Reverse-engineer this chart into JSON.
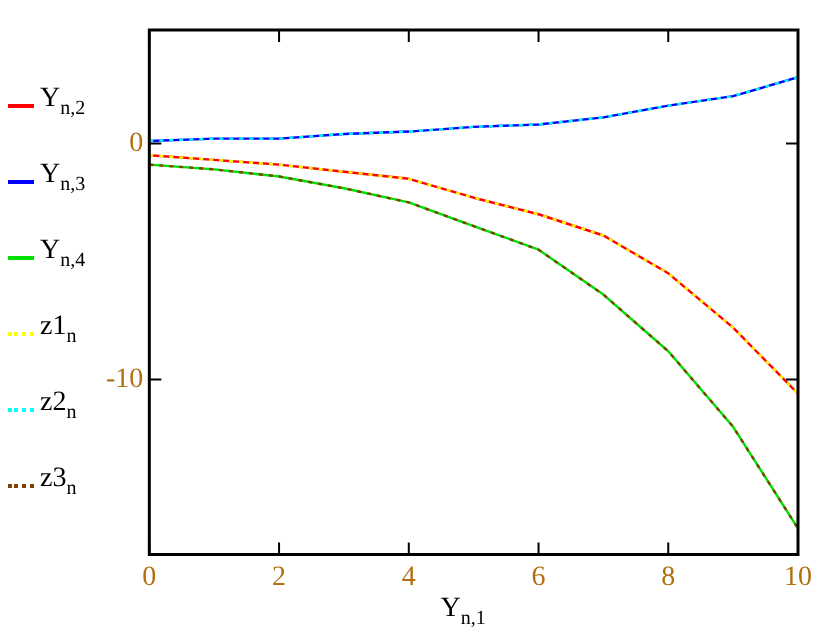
{
  "chart_data": {
    "type": "line",
    "xlabel": "Y$_{n,1}$",
    "x": [
      0,
      1,
      2,
      3,
      4,
      5,
      6,
      7,
      8,
      9,
      10
    ],
    "xlim": [
      0,
      10
    ],
    "xticks": [
      0,
      2,
      4,
      6,
      8,
      10
    ],
    "ylim": [
      -17.4,
      4.8
    ],
    "yticks": [
      0,
      -10
    ],
    "grid": false,
    "legend": "left",
    "marker": "none",
    "series": [
      {
        "name": "Y$_{n,2}$",
        "color": "#ff0000",
        "line_style": "solid",
        "values": [
          -0.5,
          -0.7,
          -0.9,
          -1.2,
          -1.5,
          -2.3,
          -3.0,
          -3.9,
          -5.5,
          -7.8,
          -10.6
        ]
      },
      {
        "name": "Y$_{n,3}$",
        "color": "#0000ff",
        "line_style": "solid",
        "values": [
          0.1,
          0.2,
          0.2,
          0.4,
          0.5,
          0.7,
          0.8,
          1.1,
          1.6,
          2.0,
          2.8
        ]
      },
      {
        "name": "Y$_{n,4}$",
        "color": "#00e000",
        "line_style": "solid",
        "values": [
          -0.9,
          -1.1,
          -1.4,
          -1.9,
          -2.5,
          -3.5,
          -4.5,
          -6.4,
          -8.8,
          -12.0,
          -16.3
        ]
      },
      {
        "name": "z1$_{n}$",
        "color": "#ffff00",
        "line_style": "dotted",
        "values": [
          -0.5,
          -0.7,
          -0.9,
          -1.2,
          -1.5,
          -2.3,
          -3.0,
          -3.9,
          -5.5,
          -7.8,
          -10.6
        ]
      },
      {
        "name": "z2$_{n}$",
        "color": "#00ffff",
        "line_style": "dotted",
        "values": [
          0.1,
          0.2,
          0.2,
          0.4,
          0.5,
          0.7,
          0.8,
          1.1,
          1.6,
          2.0,
          2.8
        ]
      },
      {
        "name": "z3$_{n}$",
        "color": "#804000",
        "line_style": "dotted",
        "values": [
          -0.9,
          -1.1,
          -1.4,
          -1.9,
          -2.5,
          -3.5,
          -4.5,
          -6.4,
          -8.8,
          -12.0,
          -16.3
        ]
      }
    ]
  }
}
